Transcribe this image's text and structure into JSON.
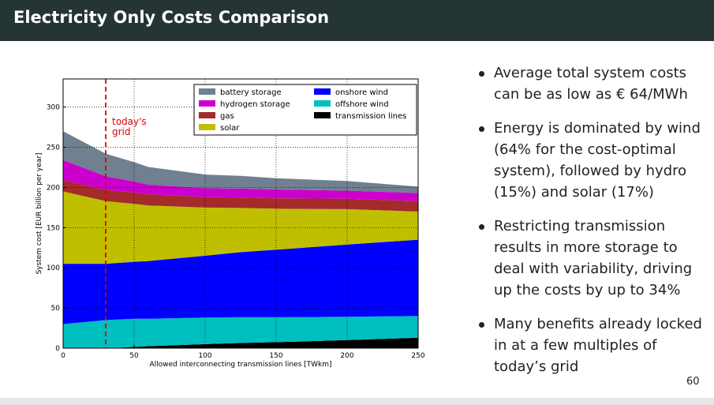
{
  "slide": {
    "title": "Electricity Only Costs Comparison",
    "page_number": "60",
    "title_bar_color": "#253534"
  },
  "bullets": [
    "Average total system costs can be as low as € 64/MWh",
    "Energy is dominated by wind (64% for the cost-optimal system), followed by hydro (15%) and solar (17%)",
    "Restricting transmission results in more storage to deal with variability, driving up the costs by up to 34%",
    "Many benefits already locked in at a few multiples of today’s grid"
  ],
  "chart_data": {
    "type": "area",
    "stacked": true,
    "xlabel": "Allowed interconnecting transmission lines [TWkm]",
    "ylabel": "System cost [EUR billion per year]",
    "xlim": [
      0,
      250
    ],
    "ylim": [
      0,
      335
    ],
    "xticks": [
      0,
      50,
      100,
      150,
      200,
      250
    ],
    "yticks": [
      0,
      50,
      100,
      150,
      200,
      250,
      300
    ],
    "grid": "dotted",
    "legend_position": "top-right",
    "x": [
      0,
      30,
      50,
      60,
      100,
      125,
      150,
      200,
      250
    ],
    "series": [
      {
        "name": "transmission lines",
        "color": "#000000",
        "values": [
          0,
          0,
          1.5,
          2.5,
          5,
          6.5,
          7.5,
          10,
          13
        ]
      },
      {
        "name": "offshore wind",
        "color": "#00bfbf",
        "values": [
          30,
          35,
          35,
          34,
          33,
          32,
          31,
          29,
          27
        ]
      },
      {
        "name": "onshore wind",
        "color": "#0000ff",
        "values": [
          75,
          70,
          71,
          72,
          77,
          81,
          84,
          90,
          95
        ]
      },
      {
        "name": "solar",
        "color": "#bfbf00",
        "values": [
          90,
          78,
          72,
          69,
          60,
          55,
          51,
          44,
          35
        ]
      },
      {
        "name": "gas",
        "color": "#a52a2a",
        "values": [
          14,
          14,
          14,
          14,
          13,
          13,
          13,
          13,
          13
        ]
      },
      {
        "name": "hydrogen storage",
        "color": "#cc00cc",
        "values": [
          25,
          17,
          14,
          12,
          11,
          11,
          11,
          10,
          10
        ]
      },
      {
        "name": "battery storage",
        "color": "#708090",
        "values": [
          36,
          28,
          24,
          22,
          17,
          16,
          14,
          12,
          8
        ]
      }
    ],
    "annotation": {
      "text": [
        "today's",
        "grid"
      ],
      "x": 30,
      "color": "#dd0000"
    }
  }
}
